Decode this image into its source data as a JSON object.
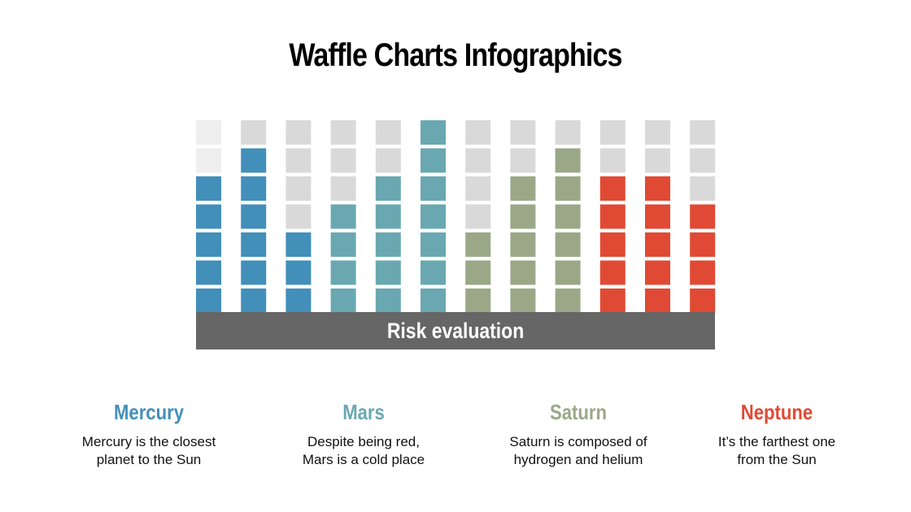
{
  "title": "Waffle Charts Infographics",
  "chart_data": {
    "type": "waffle",
    "title": "Waffle Charts Infographics",
    "xlabel": "Risk evaluation",
    "rows_per_column": 7,
    "empty_color": "#d9d9d9",
    "series": [
      {
        "name": "Mercury",
        "color": "#428fba",
        "values": [
          5,
          6,
          3
        ]
      },
      {
        "name": "Mars",
        "color": "#69a8b1",
        "values": [
          4,
          5,
          7
        ]
      },
      {
        "name": "Saturn",
        "color": "#9aa887",
        "values": [
          3,
          5,
          6
        ]
      },
      {
        "name": "Neptune",
        "color": "#e04a34",
        "values": [
          5,
          5,
          4
        ]
      }
    ]
  },
  "legend": [
    {
      "name": "Mercury",
      "text1": "Mercury is the closest",
      "text2": "planet to the Sun",
      "color": "#428fba"
    },
    {
      "name": "Mars",
      "text1": "Despite being red,",
      "text2": "Mars is a cold place",
      "color": "#69a8b1"
    },
    {
      "name": "Saturn",
      "text1": "Saturn is composed of",
      "text2": "hydrogen and helium",
      "color": "#9aa887"
    },
    {
      "name": "Neptune",
      "text1": "It’s the farthest one",
      "text2": "from the Sun",
      "color": "#e04a34"
    }
  ]
}
